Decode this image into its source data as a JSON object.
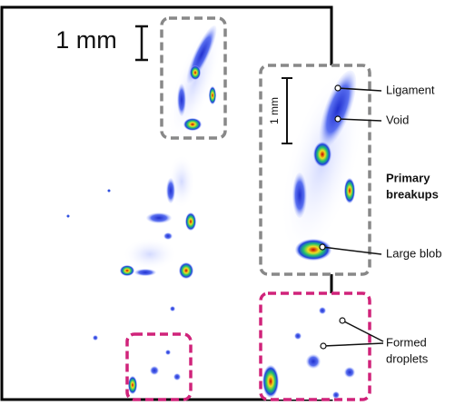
{
  "scale_bar": {
    "label": "1 mm"
  },
  "inset_top": {
    "scale_bar_label": "1 mm"
  },
  "annotations": {
    "ligament": "Ligament",
    "void": "Void",
    "primary_breakups": [
      "Primary",
      "breakups"
    ],
    "large_blob": "Large blob",
    "formed_droplets": [
      "Formed",
      "droplets"
    ]
  }
}
